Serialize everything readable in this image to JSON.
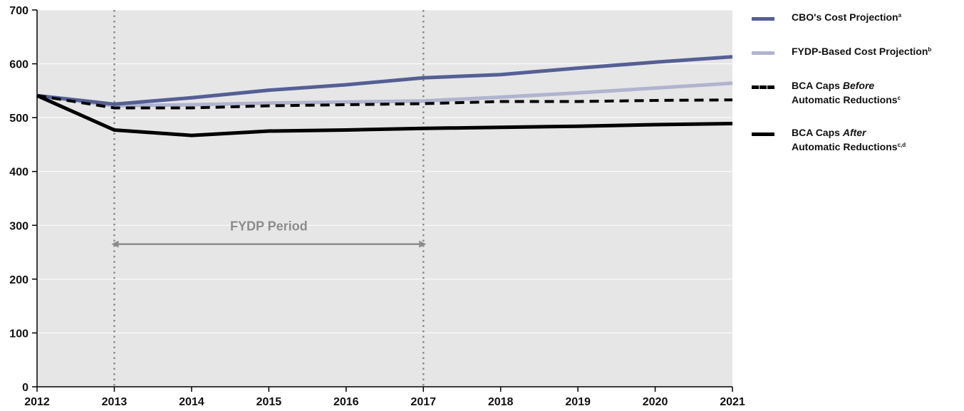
{
  "chart_data": {
    "type": "line",
    "title": "",
    "xlabel": "",
    "ylabel": "",
    "x": [
      2012,
      2013,
      2014,
      2015,
      2016,
      2017,
      2018,
      2019,
      2020,
      2021
    ],
    "x_tick_labels": [
      "2012",
      "2013",
      "2014",
      "2015",
      "2016",
      "2017",
      "2018",
      "2019",
      "2020",
      "2021"
    ],
    "ylim": [
      0,
      700
    ],
    "y_ticks": [
      0,
      100,
      200,
      300,
      400,
      500,
      600,
      700
    ],
    "y_tick_labels": [
      "0",
      "100",
      "200",
      "300",
      "400",
      "500",
      "600",
      "700"
    ],
    "grid": "horizontal",
    "background_color": "#e6e6e6",
    "legend_position": "right",
    "series": [
      {
        "name": "CBO's Cost Projection",
        "footnote": "a",
        "color": "#555f95",
        "style": "solid",
        "values": [
          541,
          525,
          537,
          551,
          561,
          574,
          580,
          592,
          603,
          613
        ]
      },
      {
        "name": "FYDP-Based Cost Projection",
        "footnote": "b",
        "color": "#b1b4cf",
        "style": "solid",
        "values": [
          541,
          522,
          524,
          527,
          529,
          531,
          538,
          546,
          555,
          564
        ]
      },
      {
        "name": "BCA Caps Before Automatic Reductions",
        "name_parts": [
          "BCA Caps ",
          "Before",
          "Automatic Reductions"
        ],
        "footnote": "c",
        "color": "#000000",
        "style": "dashed",
        "values": [
          541,
          518,
          518,
          522,
          524,
          526,
          530,
          530,
          532,
          533
        ]
      },
      {
        "name": "BCA Caps After Automatic Reductions",
        "name_parts": [
          "BCA Caps ",
          "After",
          "Automatic Reductions"
        ],
        "footnote": "c,d",
        "color": "#000000",
        "style": "solid",
        "values": [
          541,
          477,
          467,
          475,
          477,
          480,
          482,
          484,
          487,
          489
        ]
      }
    ],
    "reference_lines": [
      {
        "x": 2013,
        "color": "#8c8c8c",
        "style": "dotted"
      },
      {
        "x": 2017,
        "color": "#8c8c8c",
        "style": "dotted"
      }
    ],
    "annotations": [
      {
        "text": "FYDP Period",
        "x_start": 2013,
        "x_end": 2017,
        "y": 265,
        "label_y": 300,
        "color": "#8c8c8c"
      }
    ]
  }
}
